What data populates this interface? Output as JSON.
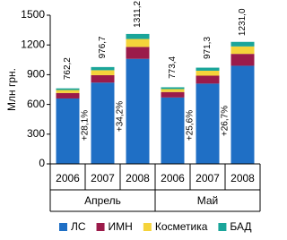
{
  "chart_data": {
    "type": "stacked_bar",
    "ylabel": "Млн грн.",
    "categories": [
      "2006",
      "2007",
      "2008",
      "2006",
      "2007",
      "2008"
    ],
    "groups": [
      "Апрель",
      "Май"
    ],
    "series": [
      {
        "name": "ЛС",
        "color": "#1f6fc5",
        "values": [
          660,
          820,
          1060,
          670,
          810,
          990
        ]
      },
      {
        "name": "ИМН",
        "color": "#9b1b4a",
        "values": [
          55,
          75,
          120,
          55,
          80,
          120
        ]
      },
      {
        "name": "Косметика",
        "color": "#f5d33a",
        "values": [
          30,
          50,
          80,
          30,
          50,
          75
        ]
      },
      {
        "name": "БАД",
        "color": "#1aa59a",
        "values": [
          17,
          32,
          51,
          18,
          31,
          46
        ]
      }
    ],
    "totals": {
      "values": [
        762.2,
        976.7,
        1311.2,
        773.4,
        971.3,
        1231.0
      ],
      "value_labels": [
        "762,2",
        "976,7",
        "1311,2",
        "773,4",
        "971,3",
        "1231,0"
      ]
    },
    "annotations": [
      "+28,1%",
      "+34,2%",
      "+25,6%",
      "+26,7%"
    ],
    "ylim": [
      0,
      1500
    ],
    "yticks": [
      0,
      300,
      600,
      900,
      1200,
      1500
    ]
  }
}
